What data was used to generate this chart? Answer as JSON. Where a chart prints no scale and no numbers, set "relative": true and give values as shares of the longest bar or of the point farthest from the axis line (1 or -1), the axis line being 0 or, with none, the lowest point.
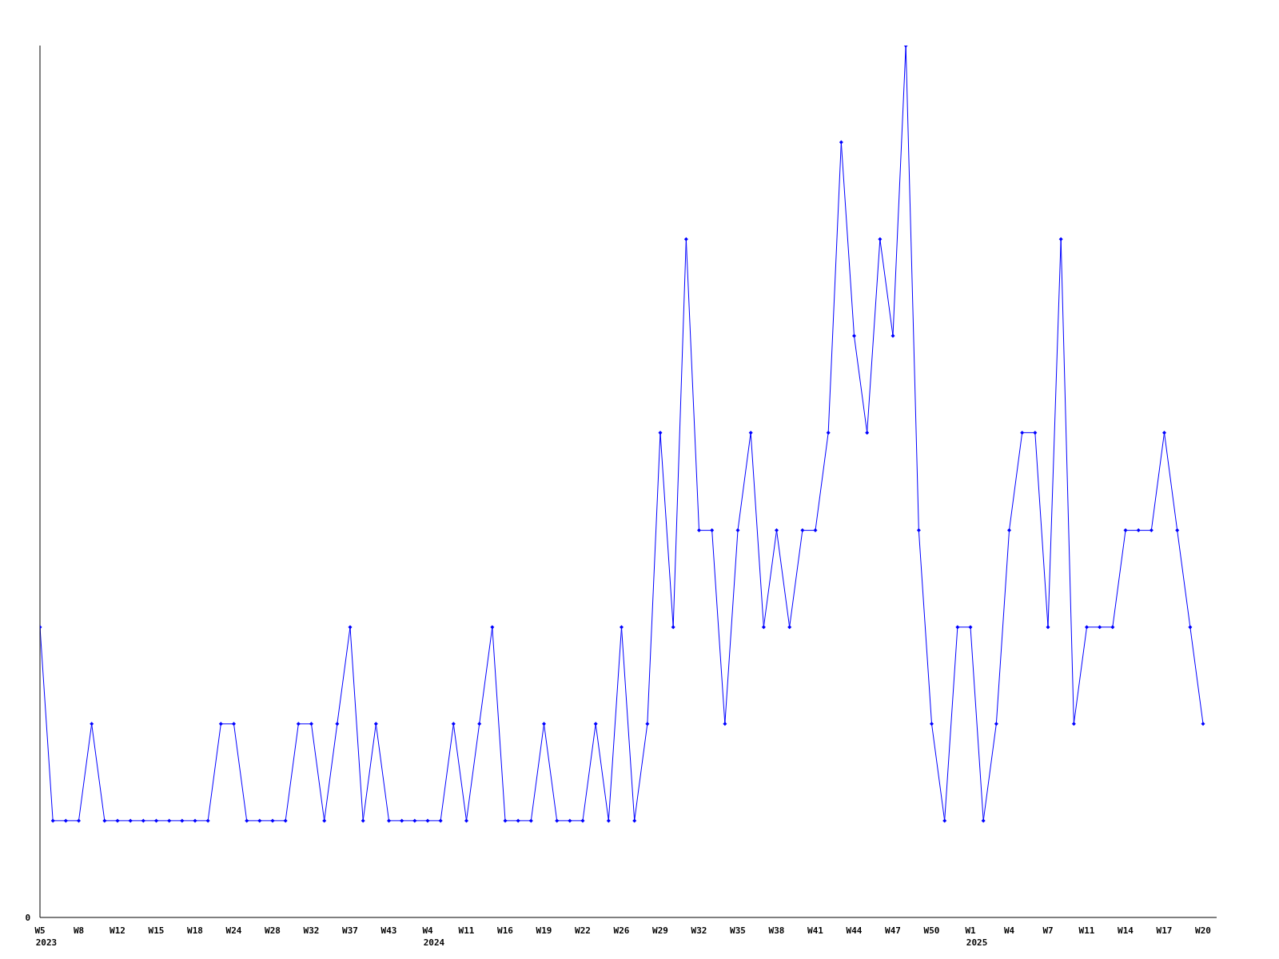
{
  "chart_data": {
    "type": "line",
    "relative": true,
    "annotations": [
      "0",
      "2023",
      "2024",
      "2025"
    ],
    "color": "#0000ff",
    "marker": "diamond",
    "categories": [
      "W5",
      null,
      null,
      "W8",
      null,
      null,
      "W12",
      null,
      null,
      "W15",
      null,
      null,
      "W18",
      null,
      null,
      "W24",
      null,
      null,
      "W28",
      null,
      null,
      "W32",
      null,
      null,
      "W37",
      null,
      null,
      "W43",
      null,
      null,
      "W4",
      null,
      null,
      "W11",
      null,
      null,
      "W16",
      null,
      null,
      "W19",
      null,
      null,
      "W22",
      null,
      null,
      "W26",
      null,
      null,
      "W29",
      null,
      null,
      "W32",
      null,
      null,
      "W35",
      null,
      null,
      "W38",
      null,
      null,
      "W41",
      null,
      null,
      "W44",
      null,
      null,
      "W47",
      null,
      null,
      "W50",
      null,
      null,
      "W1",
      null,
      null,
      "W4",
      null,
      null,
      "W7",
      null,
      null,
      "W11",
      null,
      null,
      "W14",
      null,
      null,
      "W17",
      null,
      null,
      "W20"
    ],
    "values": [
      0.333,
      0.111,
      0.111,
      0.111,
      0.222,
      0.111,
      0.111,
      0.111,
      0.111,
      0.111,
      0.111,
      0.111,
      0.111,
      0.111,
      0.222,
      0.222,
      0.111,
      0.111,
      0.111,
      0.111,
      0.222,
      0.222,
      0.111,
      0.222,
      0.333,
      0.111,
      0.222,
      0.111,
      0.111,
      0.111,
      0.111,
      0.111,
      0.222,
      0.111,
      0.222,
      0.333,
      0.111,
      0.111,
      0.111,
      0.222,
      0.111,
      0.111,
      0.111,
      0.222,
      0.111,
      0.333,
      0.111,
      0.222,
      0.556,
      0.333,
      0.778,
      0.444,
      0.444,
      0.222,
      0.444,
      0.556,
      0.333,
      0.444,
      0.333,
      0.444,
      0.444,
      0.556,
      0.889,
      0.667,
      0.556,
      0.778,
      0.667,
      1,
      0.444,
      0.222,
      0.111,
      0.333,
      0.333,
      0.111,
      0.222,
      0.444,
      0.556,
      0.556,
      0.333,
      0.778,
      0.222,
      0.333,
      0.333,
      0.333,
      0.444,
      0.444,
      0.444,
      0.556,
      0.444,
      0.333,
      0.222
    ]
  }
}
